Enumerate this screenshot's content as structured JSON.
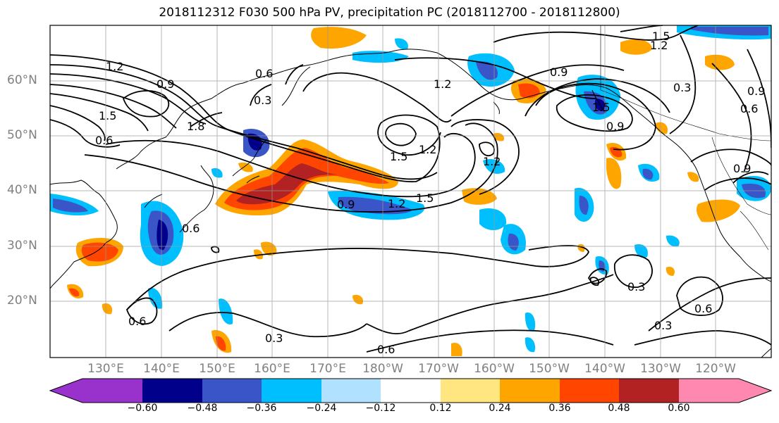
{
  "title": "2018112312 F030 500 hPa PV, precipitation PC (2018112700 - 2018112800)",
  "lat_labels": [
    "60°N",
    "50°N",
    "40°N",
    "30°N",
    "20°N"
  ],
  "lon_labels": [
    "130°E",
    "140°E",
    "150°E",
    "160°E",
    "170°E",
    "180°W",
    "170°W",
    "160°W",
    "150°W",
    "140°W",
    "130°W",
    "120°W"
  ],
  "colorbar": {
    "ticks": [
      "−0.60",
      "−0.48",
      "−0.36",
      "−0.24",
      "−0.12",
      "0.12",
      "0.24",
      "0.36",
      "0.48",
      "0.60"
    ],
    "colors": [
      "#9932cc",
      "#00008b",
      "#3a55c8",
      "#00bfff",
      "#b0e2ff",
      "#ffffff",
      "#ffe680",
      "#ffa500",
      "#ff4500",
      "#b22222",
      "#ff88b0"
    ]
  },
  "contour_labels": [
    "1.2",
    "0.6",
    "0.9",
    "1.5",
    "1.8",
    "0.6",
    "0.3",
    "1.2",
    "1.5",
    "1.2",
    "1.5",
    "1.2",
    "0.9",
    "1.5",
    "1.2",
    "0.3",
    "0.9",
    "0.6",
    "0.9",
    "0.6",
    "0.3",
    "0.6",
    "0.3",
    "0.3",
    "0.6",
    "0.6",
    "1.2",
    "1.5",
    "0.9",
    "0.9"
  ]
}
